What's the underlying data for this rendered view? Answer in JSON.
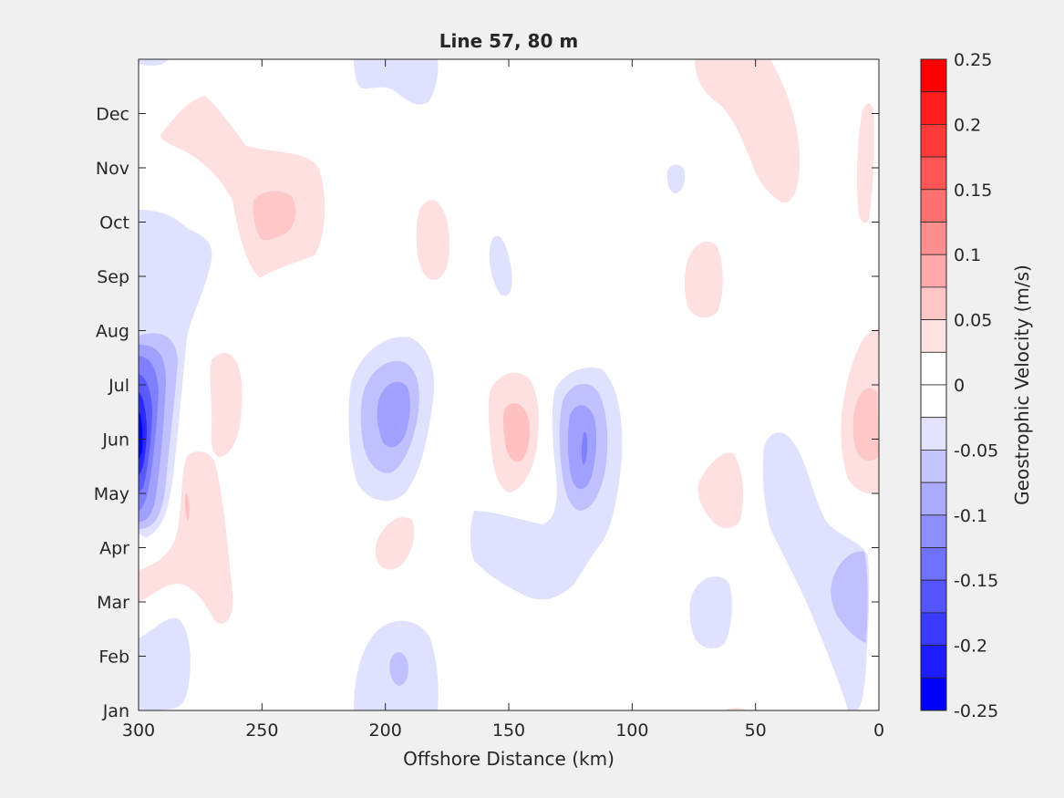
{
  "chart_data": {
    "type": "heatmap",
    "subtype": "filled-contour",
    "title": "Line 57, 80 m",
    "xlabel": "Offshore Distance (km)",
    "xlim": [
      300,
      0
    ],
    "x_reversed": true,
    "x_ticks": [
      "300",
      "250",
      "200",
      "150",
      "100",
      "50",
      "0"
    ],
    "y_ticks": [
      "Jan",
      "Feb",
      "Mar",
      "Apr",
      "May",
      "Jun",
      "Jul",
      "Aug",
      "Sep",
      "Oct",
      "Nov",
      "Dec"
    ],
    "colorbar": {
      "label": "Geostrophic Velocity (m/s)",
      "clim": [
        -0.25,
        0.25
      ],
      "tick_labels": [
        "0.25",
        "0.2",
        "0.15",
        "0.1",
        "0.05",
        "0",
        "-0.05",
        "-0.1",
        "-0.15",
        "-0.2",
        "-0.25"
      ],
      "colormap": "blue-white-red",
      "levels": 20
    },
    "features": [
      {
        "x": 297,
        "month": 5.6,
        "value": -0.25
      },
      {
        "x": 290,
        "month": 7.5,
        "value": -0.05
      },
      {
        "x": 195,
        "month": 6.2,
        "value": -0.1
      },
      {
        "x": 120,
        "month": 5.9,
        "value": -0.1
      },
      {
        "x": 147,
        "month": 6.1,
        "value": 0.05
      },
      {
        "x": 240,
        "month": 9.8,
        "value": 0.05
      },
      {
        "x": 195,
        "month": 1.2,
        "value": -0.075
      },
      {
        "x": 275,
        "month": 3.7,
        "value": 0.03
      },
      {
        "x": 20,
        "month": 3.1,
        "value": -0.05
      },
      {
        "x": 5,
        "month": 6.0,
        "value": 0.05
      }
    ]
  },
  "colors": {
    "background": "#f0f0f0",
    "axes_background": "#ffffff",
    "negative_max": "#0000ff",
    "positive_max": "#ff0000"
  }
}
